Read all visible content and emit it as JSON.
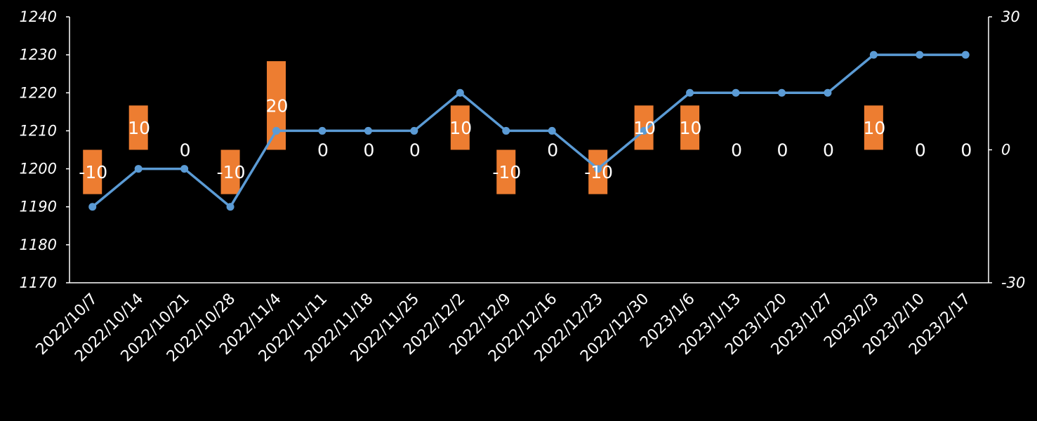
{
  "chart_data": {
    "type": "bar+line",
    "categories": [
      "2022/10/7",
      "2022/10/14",
      "2022/10/21",
      "2022/10/28",
      "2022/11/4",
      "2022/11/11",
      "2022/11/18",
      "2022/11/25",
      "2022/12/2",
      "2022/12/9",
      "2022/12/16",
      "2022/12/23",
      "2022/12/30",
      "2023/1/6",
      "2023/1/13",
      "2023/1/20",
      "2023/1/27",
      "2023/2/3",
      "2023/2/10",
      "2023/2/17"
    ],
    "series": [
      {
        "type": "line",
        "axis": "left",
        "values": [
          1190,
          1200,
          1200,
          1190,
          1210,
          1210,
          1210,
          1210,
          1220,
          1210,
          1210,
          1200,
          1210,
          1220,
          1220,
          1220,
          1220,
          1230,
          1230,
          1230
        ]
      },
      {
        "type": "bar",
        "axis": "right",
        "values": [
          -10,
          10,
          0,
          -10,
          20,
          0,
          0,
          0,
          10,
          -10,
          0,
          -10,
          10,
          10,
          0,
          0,
          0,
          10,
          0,
          0
        ]
      }
    ],
    "y_left": {
      "min": 1170,
      "max": 1240,
      "ticks": [
        "1240",
        "1230",
        "1220",
        "1210",
        "1200",
        "1190",
        "1180",
        "1170"
      ]
    },
    "y_right": {
      "min": -30,
      "max": 30,
      "ticks": [
        "30",
        "0",
        "-30"
      ]
    },
    "grid": false,
    "colors": {
      "line": "#5b9bd5",
      "bar": "#ed7d31",
      "background": "#000000",
      "text": "#ffffff",
      "axis": "#ffffff"
    }
  }
}
